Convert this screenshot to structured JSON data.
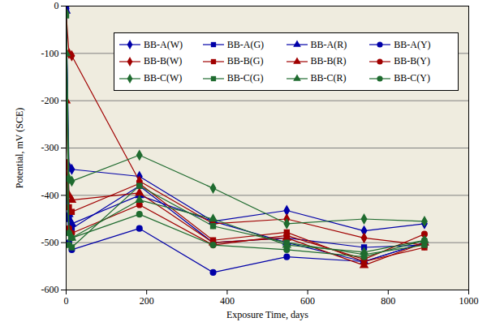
{
  "chart_data": {
    "type": "line",
    "x_label": "Exposure Time, days",
    "y_label": "Potential, mV (SCE)",
    "xlim": [
      0,
      1000
    ],
    "xticks": [
      0,
      200,
      400,
      600,
      800,
      1000
    ],
    "ylim": [
      -600,
      0
    ],
    "yticks": [
      -600,
      -500,
      -400,
      -300,
      -200,
      -100,
      0
    ],
    "grid": true,
    "legend": "top",
    "x": [
      0,
      7,
      14,
      182,
      365,
      548,
      740,
      890
    ],
    "series": [
      {
        "name": "BB-A(W)",
        "color": "#0000A8",
        "marker": "diamond",
        "values": [
          -5,
          -340,
          -345,
          -360,
          -455,
          -432,
          -475,
          -460
        ]
      },
      {
        "name": "BB-A(G)",
        "color": "#0000A8",
        "marker": "square",
        "values": [
          -5,
          -450,
          -470,
          -380,
          -500,
          -490,
          -510,
          -505
        ]
      },
      {
        "name": "BB-A(R)",
        "color": "#0000A8",
        "marker": "triangle",
        "values": [
          -10,
          -440,
          -460,
          -400,
          -455,
          -500,
          -540,
          -500
        ]
      },
      {
        "name": "BB-A(Y)",
        "color": "#0000A8",
        "marker": "circle",
        "values": [
          -370,
          -500,
          -515,
          -470,
          -563,
          -530,
          -540,
          -500
        ]
      },
      {
        "name": "BB-B(W)",
        "color": "#A00000",
        "marker": "diamond",
        "values": [
          -15,
          -100,
          -105,
          -370,
          -460,
          -450,
          -490,
          -505
        ]
      },
      {
        "name": "BB-B(G)",
        "color": "#A00000",
        "marker": "square",
        "values": [
          -330,
          -425,
          -435,
          -375,
          -495,
          -478,
          -540,
          -510
        ]
      },
      {
        "name": "BB-B(R)",
        "color": "#A00000",
        "marker": "triangle",
        "values": [
          -200,
          -400,
          -410,
          -395,
          -500,
          -490,
          -548,
          -500
        ]
      },
      {
        "name": "BB-B(Y)",
        "color": "#A00000",
        "marker": "circle",
        "values": [
          -340,
          -470,
          -480,
          -420,
          -505,
          -485,
          -535,
          -482
        ]
      },
      {
        "name": "BB-C(W)",
        "color": "#1F6B2F",
        "marker": "diamond",
        "values": [
          -15,
          -365,
          -370,
          -315,
          -385,
          -460,
          -450,
          -455
        ]
      },
      {
        "name": "BB-C(G)",
        "color": "#1F6B2F",
        "marker": "square",
        "values": [
          -20,
          -505,
          -510,
          -380,
          -465,
          -500,
          -525,
          -505
        ]
      },
      {
        "name": "BB-C(R)",
        "color": "#1F6B2F",
        "marker": "triangle",
        "values": [
          -100,
          -480,
          -490,
          -410,
          -450,
          -505,
          -520,
          -495
        ]
      },
      {
        "name": "BB-C(Y)",
        "color": "#1F6B2F",
        "marker": "circle",
        "values": [
          -365,
          -480,
          -490,
          -440,
          -505,
          -515,
          -530,
          -495
        ]
      }
    ]
  }
}
